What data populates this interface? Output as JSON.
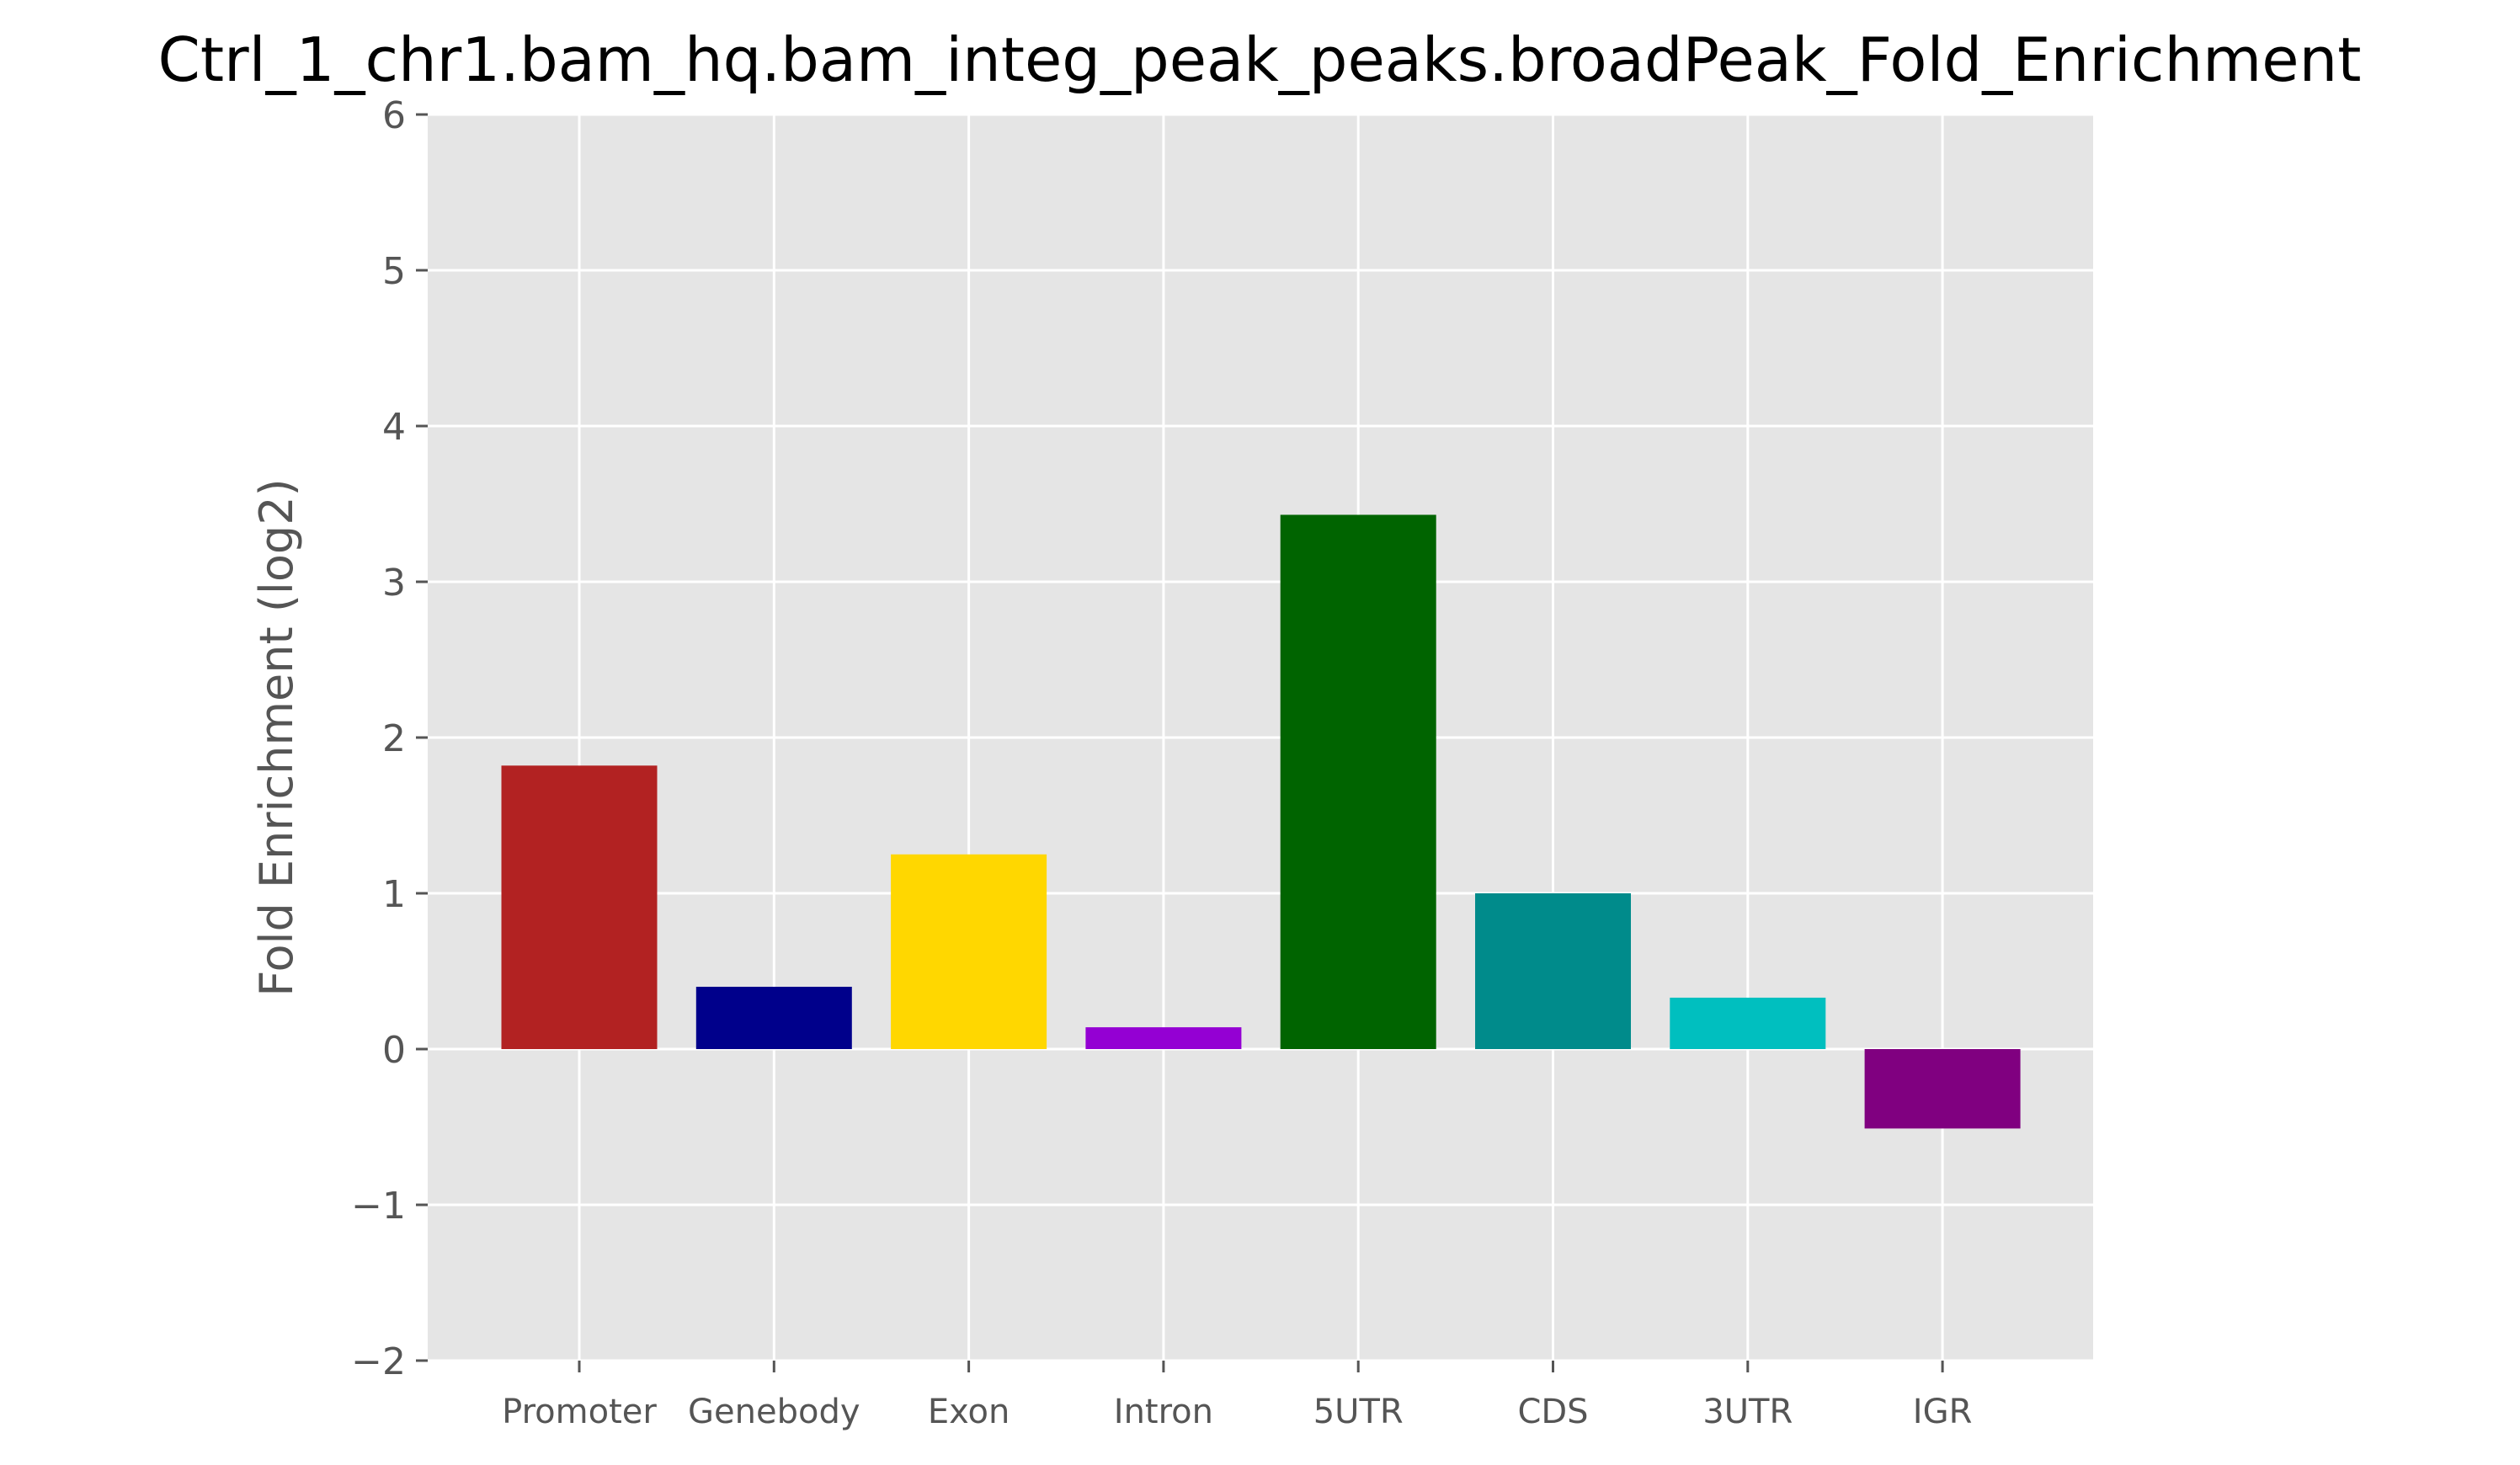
{
  "chart_data": {
    "type": "bar",
    "title": "Ctrl_1_chr1.bam_hq.bam_integ_peak_peaks.broadPeak_Fold_Enrichment",
    "xlabel": "",
    "ylabel": "Fold Enrichment (log2)",
    "categories": [
      "Promoter",
      "Genebody",
      "Exon",
      "Intron",
      "5UTR",
      "CDS",
      "3UTR",
      "IGR"
    ],
    "values": [
      1.82,
      0.4,
      1.25,
      0.14,
      3.43,
      1.0,
      0.33,
      -0.51
    ],
    "colors": [
      "#b22222",
      "#00008b",
      "#ffd700",
      "#9400d3",
      "#006400",
      "#008b8b",
      "#00bfbf",
      "#800080"
    ],
    "ylim": [
      -2,
      6
    ],
    "yticks": [
      -2,
      -1,
      0,
      1,
      2,
      3,
      4,
      5,
      6
    ],
    "ytick_labels": [
      "−2",
      "−1",
      "0",
      "1",
      "2",
      "3",
      "4",
      "5",
      "6"
    ],
    "grid": true,
    "style": "ggplot",
    "background": "#e5e5e5",
    "grid_color": "#ffffff"
  }
}
